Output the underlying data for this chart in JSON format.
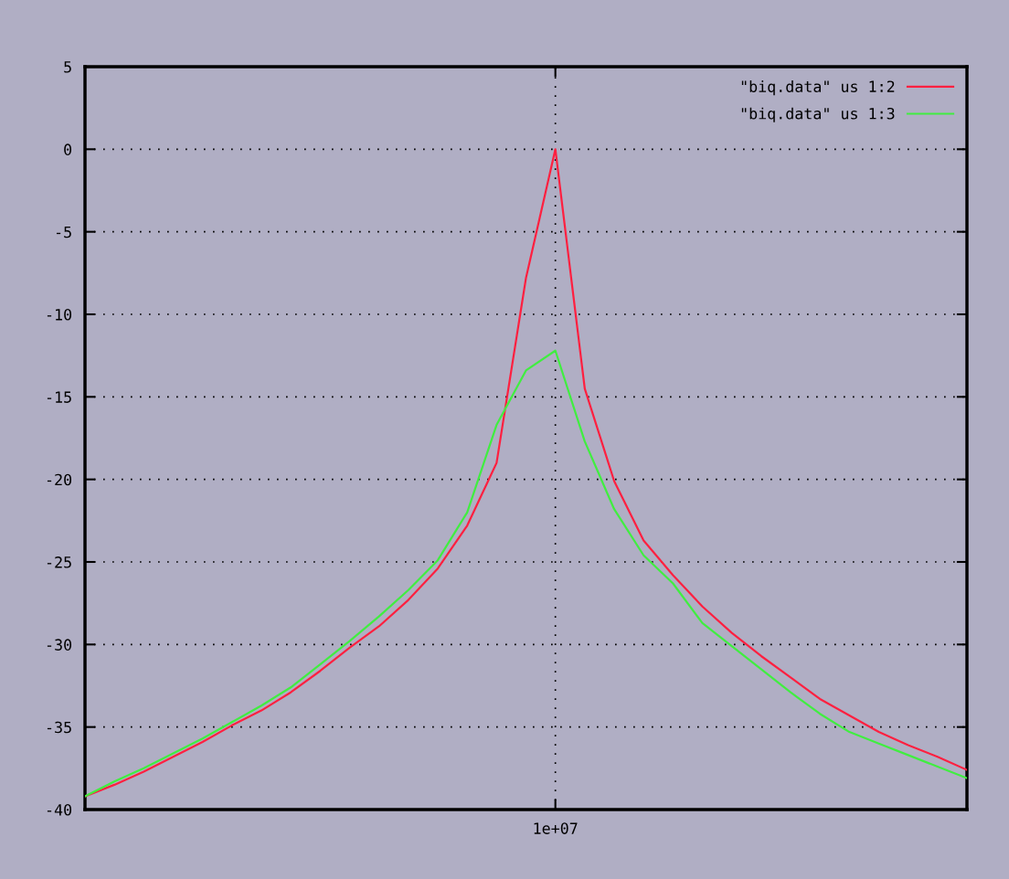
{
  "chart_data": {
    "type": "line",
    "grid": true,
    "legend": "top right",
    "line_style": "solid",
    "marker": "none",
    "categories": [
      null,
      null,
      null,
      null,
      null,
      null,
      null,
      null,
      null,
      null,
      null,
      null,
      null,
      null,
      null,
      null,
      "1e+07",
      null,
      null,
      null,
      null,
      null,
      null,
      null,
      null,
      null,
      null,
      null,
      null,
      null,
      null
    ],
    "ylim": [
      -40,
      5
    ],
    "yticks": [
      5,
      0,
      -5,
      -10,
      -15,
      -20,
      -25,
      -30,
      -35,
      -40
    ],
    "series": [
      {
        "name": "\"biq.data\" us 1:2",
        "color": "#ff2040",
        "values": [
          -39.2,
          -38.5,
          -37.7,
          -36.8,
          -35.9,
          -34.9,
          -34.0,
          -32.9,
          -31.6,
          -30.2,
          -28.9,
          -27.3,
          -25.4,
          -22.8,
          -19.0,
          -7.8,
          0.0,
          -14.5,
          -20.1,
          -23.7,
          -25.8,
          -27.7,
          -29.3,
          -30.7,
          -32.0,
          -33.3,
          -34.3,
          -35.3,
          -36.1,
          -36.8,
          -37.6
        ]
      },
      {
        "name": "\"biq.data\" us 1:3",
        "color": "#40ee40",
        "values": [
          -39.2,
          -38.3,
          -37.5,
          -36.6,
          -35.7,
          -34.7,
          -33.7,
          -32.6,
          -31.2,
          -29.8,
          -28.3,
          -26.7,
          -24.9,
          -22.0,
          -16.7,
          -13.4,
          -12.2,
          -17.7,
          -21.8,
          -24.6,
          -26.3,
          -28.7,
          -30.1,
          -31.5,
          -32.9,
          -34.2,
          -35.3,
          -36.0,
          -36.7,
          -37.4,
          -38.1
        ]
      }
    ]
  }
}
